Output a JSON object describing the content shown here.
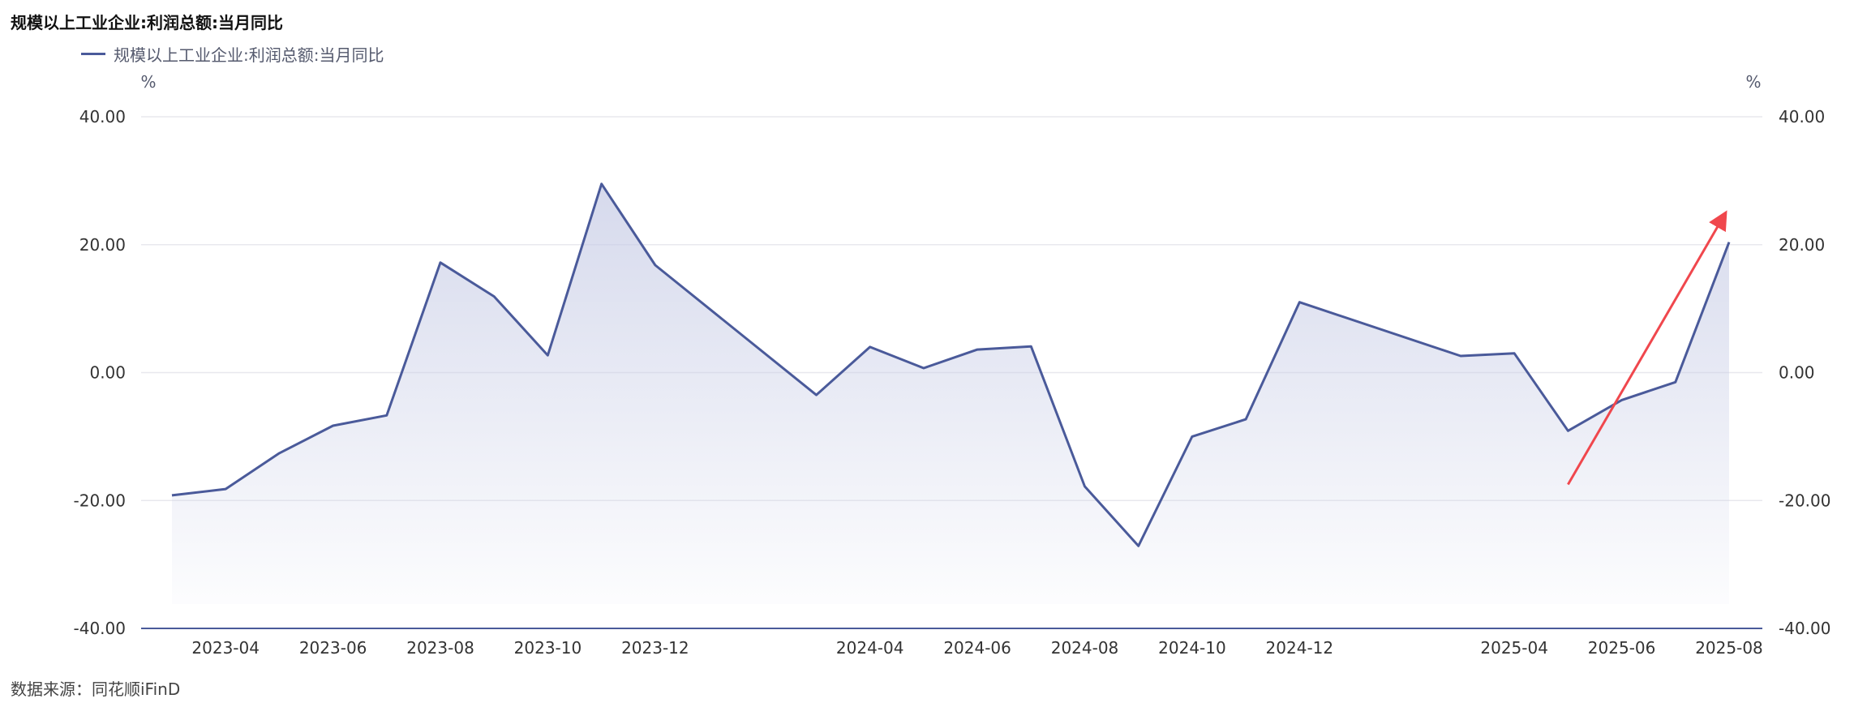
{
  "title": "规模以上工业企业:利润总额:当月同比",
  "source": "数据来源：同花顺iFinD",
  "colors": {
    "line": "#4a5a9a",
    "area_top": "#c8cde6",
    "grid": "#e8e8ee",
    "axis": "#4a5a9a",
    "arrow": "#f0474d"
  },
  "chart_data": {
    "type": "area",
    "title": "规模以上工业企业:利润总额:当月同比",
    "ylabel_left": "%",
    "ylabel_right": "%",
    "ylim": [
      -40,
      40
    ],
    "yticks": [
      "40.00",
      "20.00",
      "0.00",
      "-20.00",
      "-40.00"
    ],
    "xtick_labels": [
      "2023-04",
      "2023-06",
      "2023-08",
      "2023-10",
      "2023-12",
      "2024-04",
      "2024-06",
      "2024-08",
      "2024-10",
      "2024-12",
      "2025-04",
      "2025-06",
      "2025-08"
    ],
    "grid": true,
    "legend_position": "top-left",
    "series": [
      {
        "name": "规模以上工业企业:利润总额:当月同比",
        "x": [
          "2023-03",
          "2023-04",
          "2023-05",
          "2023-06",
          "2023-07",
          "2023-08",
          "2023-09",
          "2023-10",
          "2023-11",
          "2023-12",
          "2024-03",
          "2024-04",
          "2024-05",
          "2024-06",
          "2024-07",
          "2024-08",
          "2024-09",
          "2024-10",
          "2024-11",
          "2024-12",
          "2025-03",
          "2025-04",
          "2025-05",
          "2025-06",
          "2025-07",
          "2025-08"
        ],
        "values": [
          -19.2,
          -18.2,
          -12.6,
          -8.3,
          -6.7,
          17.2,
          11.9,
          2.7,
          29.5,
          16.8,
          -3.5,
          4.0,
          0.7,
          3.6,
          4.1,
          -17.8,
          -27.1,
          -10.0,
          -7.3,
          11.0,
          2.6,
          3.0,
          -9.1,
          -4.3,
          -1.5,
          20.4
        ]
      }
    ],
    "annotations": [
      {
        "type": "arrow",
        "color": "#f0474d",
        "from": [
          "2025-05",
          -17.5
        ],
        "to": [
          "2025-08",
          25.5
        ]
      }
    ]
  }
}
